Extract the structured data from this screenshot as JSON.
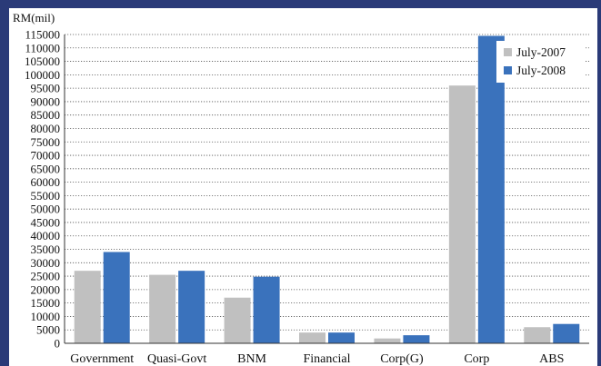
{
  "chart_data": {
    "type": "bar",
    "ylabel": "RM(mil)",
    "categories": [
      "Government",
      "Quasi-Govt",
      "BNM",
      "Financial",
      "Corp(G)",
      "Corp",
      "ABS"
    ],
    "series": [
      {
        "name": "July-2007",
        "color": "#c0c0c0",
        "values": [
          27000,
          25500,
          17000,
          4000,
          1800,
          96000,
          6000
        ]
      },
      {
        "name": "July-2008",
        "color": "#3a72bc",
        "values": [
          34000,
          27000,
          24800,
          4000,
          3000,
          114500,
          7200
        ]
      }
    ],
    "ylim": [
      0,
      115000
    ],
    "ytick_step": 5000,
    "yticks": [
      "0",
      "5000",
      "10000",
      "15000",
      "20000",
      "25000",
      "30000",
      "35000",
      "40000",
      "45000",
      "50000",
      "55000",
      "60000",
      "65000",
      "70000",
      "75000",
      "80000",
      "85000",
      "90000",
      "95000",
      "100000",
      "105000",
      "110000",
      "115000"
    ],
    "grid": true,
    "grid_style": "dotted",
    "legend_position": "top-right"
  }
}
